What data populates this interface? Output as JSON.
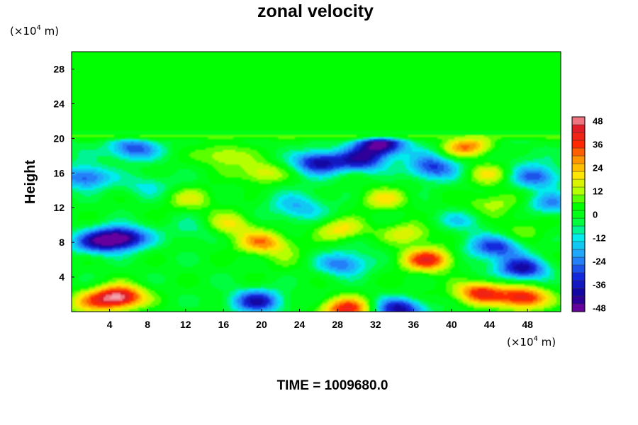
{
  "chart_data": {
    "type": "heatmap",
    "title": "zonal velocity",
    "ylabel": "Height",
    "xlabel": "",
    "x_unit": "(×10",
    "x_unit_exp": "4",
    "x_unit_tail": " m)",
    "y_unit": "(×10",
    "y_unit_exp": "4",
    "y_unit_tail": " m)",
    "xlim": [
      0,
      51.5
    ],
    "ylim": [
      0,
      30
    ],
    "x_ticks": [
      4,
      8,
      12,
      16,
      20,
      24,
      28,
      32,
      36,
      40,
      44,
      48
    ],
    "y_ticks": [
      4,
      8,
      12,
      16,
      20,
      24,
      28
    ],
    "colorbar": {
      "range": [
        -50,
        50
      ],
      "ticks": [
        48,
        36,
        24,
        12,
        0,
        -12,
        -24,
        -36,
        -48
      ],
      "levels": [
        -50,
        -46,
        -42,
        -38,
        -34,
        -30,
        -26,
        -22,
        -18,
        -14,
        -10,
        -6,
        -2,
        2,
        6,
        10,
        14,
        18,
        22,
        26,
        30,
        34,
        38,
        42,
        46,
        50
      ]
    },
    "features": [
      {
        "x": 5,
        "y": 1.7,
        "value": 50
      },
      {
        "x": 2,
        "y": 1.0,
        "value": 20
      },
      {
        "x": 29,
        "y": 0.3,
        "value": 40
      },
      {
        "x": 43,
        "y": 2.2,
        "value": 38
      },
      {
        "x": 47.5,
        "y": 1.6,
        "value": 44
      },
      {
        "x": 5.5,
        "y": 8.5,
        "value": -44
      },
      {
        "x": 2.5,
        "y": 8.0,
        "value": -32
      },
      {
        "x": 20,
        "y": 8.0,
        "value": 27
      },
      {
        "x": 16.5,
        "y": 10.0,
        "value": 18
      },
      {
        "x": 28.5,
        "y": 9.5,
        "value": 22
      },
      {
        "x": 19.5,
        "y": 1.2,
        "value": -38
      },
      {
        "x": 28.5,
        "y": 5.5,
        "value": -26
      },
      {
        "x": 34.5,
        "y": 0.3,
        "value": -42
      },
      {
        "x": 37.5,
        "y": 6.0,
        "value": 40
      },
      {
        "x": 47.5,
        "y": 5.0,
        "value": -40
      },
      {
        "x": 45,
        "y": 7.5,
        "value": -30
      },
      {
        "x": 32.5,
        "y": 19.3,
        "value": -48
      },
      {
        "x": 30.5,
        "y": 17.5,
        "value": -36
      },
      {
        "x": 26,
        "y": 17.2,
        "value": -40
      },
      {
        "x": 6.5,
        "y": 18.8,
        "value": -30
      },
      {
        "x": 1.5,
        "y": 15.5,
        "value": -30
      },
      {
        "x": 41.5,
        "y": 19.0,
        "value": 36
      },
      {
        "x": 44,
        "y": 16.0,
        "value": 20
      },
      {
        "x": 33,
        "y": 13.0,
        "value": 18
      },
      {
        "x": 20,
        "y": 16.0,
        "value": 18
      },
      {
        "x": 38,
        "y": 16.5,
        "value": -24
      },
      {
        "x": 12.5,
        "y": 13.0,
        "value": 14
      },
      {
        "x": 8,
        "y": 14.5,
        "value": -12
      },
      {
        "x": 50.5,
        "y": 12.5,
        "value": -22
      },
      {
        "x": 35.5,
        "y": 9.0,
        "value": 18
      },
      {
        "x": 13,
        "y": 9.5,
        "value": -10
      },
      {
        "x": 41,
        "y": 10.5,
        "value": -14
      },
      {
        "x": 49,
        "y": 15.5,
        "value": -26
      },
      {
        "x": 16,
        "y": 18.0,
        "value": 16
      },
      {
        "x": 24,
        "y": 12.0,
        "value": -12
      },
      {
        "x": 44,
        "y": 12.5,
        "value": 12
      }
    ]
  },
  "footer": {
    "time_label": "TIME = 1009680.0"
  }
}
